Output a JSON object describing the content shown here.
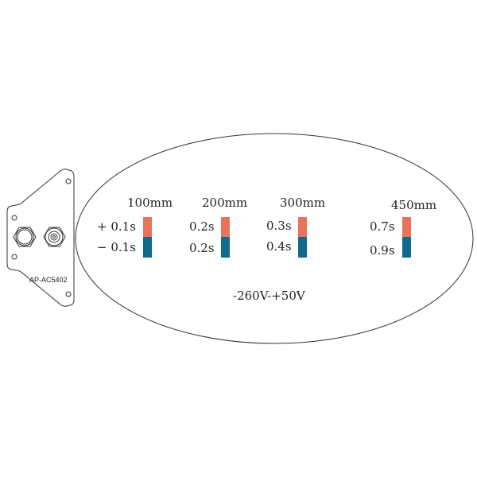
{
  "device": {
    "model": "AP-AC5402"
  },
  "columns": [
    {
      "distance": "100mm",
      "plus": "+ 0.1s",
      "minus": "− 0.1s"
    },
    {
      "distance": "200mm",
      "plus": "0.2s",
      "minus": "0.2s"
    },
    {
      "distance": "300mm",
      "plus": "0.3s",
      "minus": "0.4s"
    },
    {
      "distance": "450mm",
      "plus": "0.7s",
      "minus": "0.9s"
    }
  ],
  "voltage_range": "-260V-+50V",
  "colors": {
    "positive": "#e8735c",
    "negative": "#0f6a8e",
    "line": "#333333"
  }
}
